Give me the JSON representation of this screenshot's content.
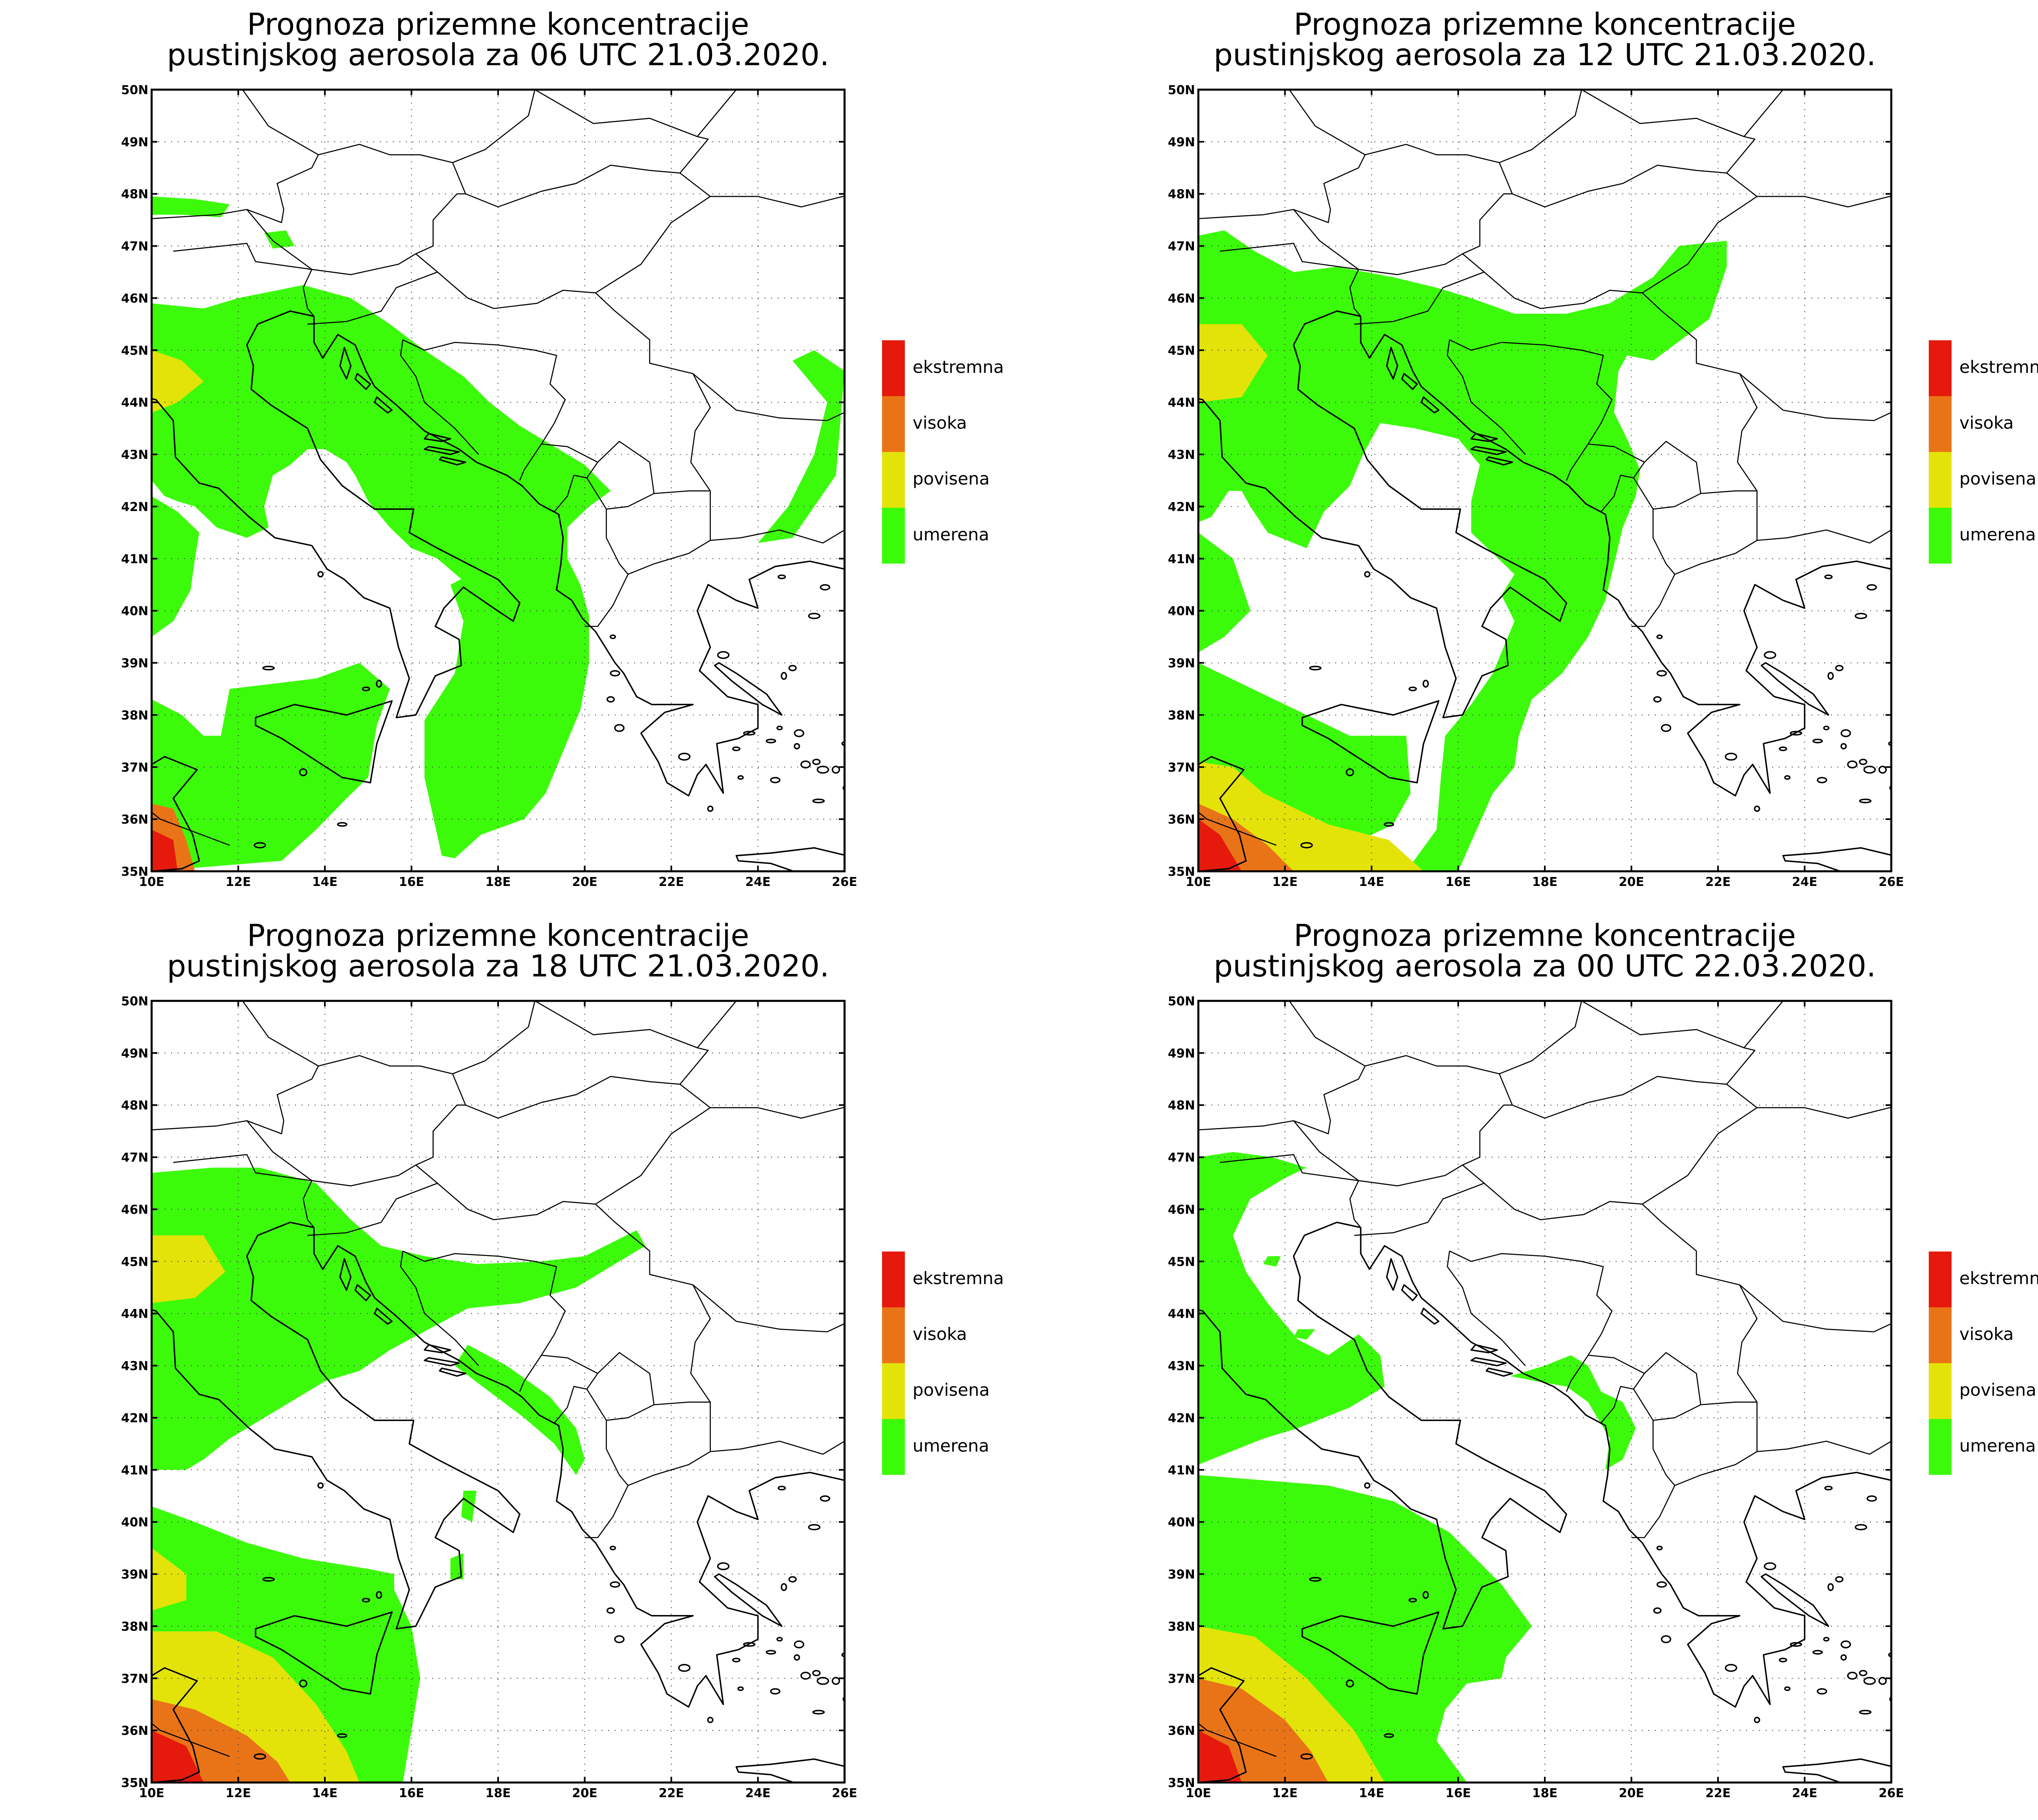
{
  "panels": [
    {
      "title_line1": "Prognoza prizemne koncentracije",
      "title_line2": "pustinjskog aerosola za 06 UTC 21.03.2020.",
      "valid": "06 UTC 21.03.2020",
      "levels_present": [
        "umerena",
        "povisena",
        "visoka",
        "ekstremna"
      ]
    },
    {
      "title_line1": "Prognoza prizemne koncentracije",
      "title_line2": "pustinjskog aerosola za 12 UTC 21.03.2020.",
      "valid": "12 UTC 21.03.2020",
      "levels_present": [
        "umerena",
        "povisena",
        "visoka",
        "ekstremna"
      ]
    },
    {
      "title_line1": "Prognoza prizemne koncentracije",
      "title_line2": "pustinjskog aerosola za 18 UTC 21.03.2020.",
      "valid": "18 UTC 21.03.2020",
      "levels_present": [
        "umerena",
        "povisena",
        "visoka",
        "ekstremna"
      ]
    },
    {
      "title_line1": "Prognoza prizemne koncentracije",
      "title_line2": "pustinjskog aerosola za 00 UTC 22.03.2020.",
      "valid": "00 UTC 22.03.2020",
      "levels_present": [
        "umerena",
        "povisena",
        "visoka",
        "ekstremna"
      ]
    }
  ],
  "axes": {
    "lon_range": [
      10,
      26
    ],
    "lat_range": [
      35,
      50
    ],
    "x_ticks": [
      "10E",
      "12E",
      "14E",
      "16E",
      "18E",
      "20E",
      "22E",
      "24E",
      "26E"
    ],
    "y_ticks": [
      "35N",
      "36N",
      "37N",
      "38N",
      "39N",
      "40N",
      "41N",
      "42N",
      "43N",
      "44N",
      "45N",
      "46N",
      "47N",
      "48N",
      "49N",
      "50N"
    ]
  },
  "legend": [
    {
      "label": "ekstremna",
      "color": "#e51a0c"
    },
    {
      "label": "visoka",
      "color": "#e97418"
    },
    {
      "label": "povisena",
      "color": "#e3e30a"
    },
    {
      "label": "umerena",
      "color": "#3cfb0a"
    }
  ]
}
